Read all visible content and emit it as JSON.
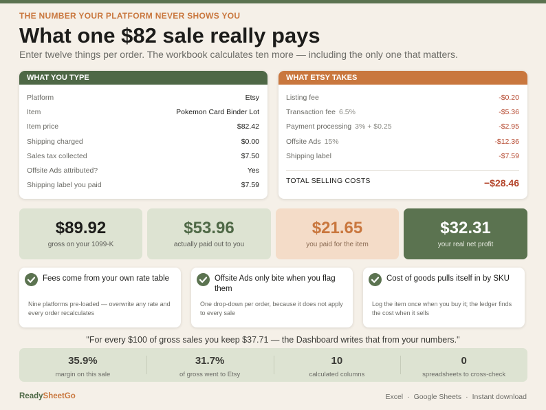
{
  "eyebrow": "THE NUMBER YOUR PLATFORM NEVER SHOWS YOU",
  "title": "What one $82 sale really pays",
  "subtitle": "Enter twelve things per order. The workbook calculates ten more — including the only one that matters.",
  "input_panel": {
    "heading": "WHAT YOU TYPE",
    "rows": [
      {
        "label": "Platform",
        "value": "Etsy"
      },
      {
        "label": "Item",
        "value": "Pokemon Card Binder Lot"
      },
      {
        "label": "Item price",
        "value": "$82.42"
      },
      {
        "label": "Shipping charged",
        "value": "$0.00"
      },
      {
        "label": "Sales tax collected",
        "value": "$7.50"
      },
      {
        "label": "Offsite Ads attributed?",
        "value": "Yes"
      },
      {
        "label": "Shipping label you paid",
        "value": "$7.59"
      }
    ]
  },
  "cost_panel": {
    "heading": "WHAT ETSY TAKES",
    "rows": [
      {
        "label": "Listing fee",
        "sub": "",
        "value": "-$0.20"
      },
      {
        "label": "Transaction fee",
        "sub": "6.5%",
        "value": "-$5.36"
      },
      {
        "label": "Payment processing",
        "sub": "3% + $0.25",
        "value": "-$2.95"
      },
      {
        "label": "Offsite Ads",
        "sub": "15%",
        "value": "-$12.36"
      },
      {
        "label": "Shipping label",
        "sub": "",
        "value": "-$7.59"
      }
    ],
    "total_label": "TOTAL SELLING COSTS",
    "total_value": "−$28.46"
  },
  "stats": [
    {
      "value": "$89.92",
      "label": "gross on your 1099-K"
    },
    {
      "value": "$53.96",
      "label": "actually paid out to you"
    },
    {
      "value": "$21.65",
      "label": "you paid for the item"
    },
    {
      "value": "$32.31",
      "label": "your real net profit"
    }
  ],
  "features": [
    {
      "title": "Fees come from your own rate table",
      "body": "Nine platforms pre-loaded — overwrite any rate and every order recalculates"
    },
    {
      "title": "Offsite Ads only bite when you flag them",
      "body": "One drop-down per order, because it does not apply to every sale"
    },
    {
      "title": "Cost of goods pulls itself in by SKU",
      "body": "Log the item once when you buy it; the ledger finds the cost when it sells"
    }
  ],
  "quote": "\"For every $100 of gross sales you keep $37.71 — the Dashboard writes that from your numbers.\"",
  "metrics": [
    {
      "value": "35.9%",
      "label": "margin on this sale"
    },
    {
      "value": "31.7%",
      "label": "of gross went to Etsy"
    },
    {
      "value": "10",
      "label": "calculated columns"
    },
    {
      "value": "0",
      "label": "spreadsheets to cross-check"
    }
  ],
  "footer": {
    "brand_part1": "Ready",
    "brand_part2": "SheetGo",
    "formats": [
      "Excel",
      "Google Sheets",
      "Instant download"
    ],
    "separator": "·"
  },
  "colors": {
    "green": "#5b7350",
    "orange": "#c9773e",
    "red": "#b4452b",
    "background": "#f5f0e8"
  }
}
